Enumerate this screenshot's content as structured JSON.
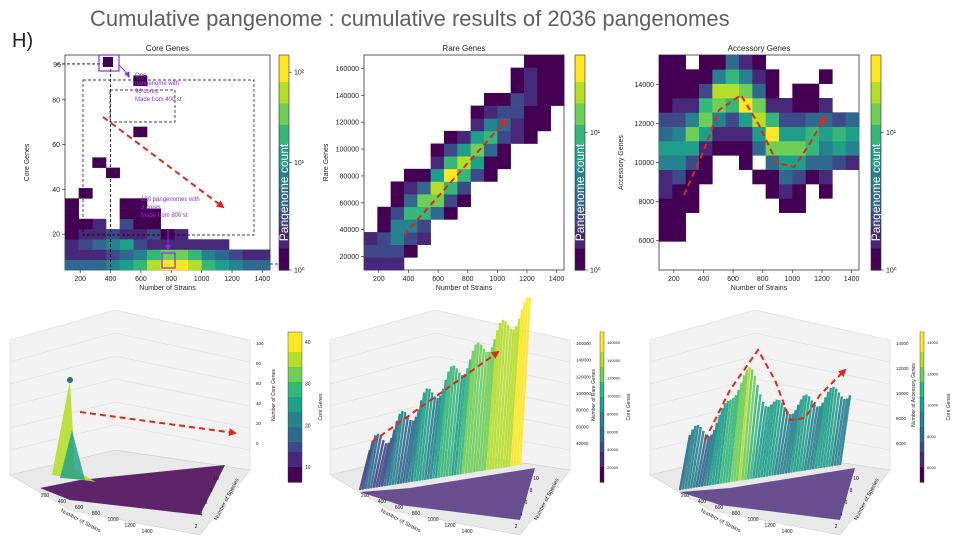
{
  "page": {
    "title": "Cumulative pangenome : cumulative results of 2036 pangenomes",
    "panel_letter": "H)"
  },
  "colors": {
    "viridis": [
      "#440154",
      "#482878",
      "#3e4989",
      "#31688e",
      "#26828e",
      "#1f9e89",
      "#35b779",
      "#6ece58",
      "#b5de2b",
      "#fde725"
    ],
    "arrow": "#e3261b",
    "annotation": "#8a2be2",
    "frame": "#333333"
  },
  "chart_data": [
    {
      "type": "heatmap",
      "title": "Core Genes",
      "xlabel": "Number of Strains",
      "ylabel": "Core Genes",
      "xlim": [
        100,
        1450
      ],
      "ylim": [
        4,
        100
      ],
      "xticks": [
        200,
        400,
        600,
        800,
        1000,
        1200,
        1400
      ],
      "yticks": [
        20,
        40,
        60,
        80
      ],
      "extra_ytick": "96",
      "colorbar": {
        "label": "Pangenome count",
        "scale": "log",
        "ticks": [
          "10⁰",
          "10¹",
          "10²"
        ]
      },
      "annotations": [
        "One\npangenome with\n96 cores\nMade from 400 st",
        "100 pangenomes with\n3 cores\nMade from 800 st"
      ]
    },
    {
      "type": "heatmap",
      "title": "Rare Genes",
      "xlabel": "Number of Strains",
      "ylabel": "Rare Genes",
      "xlim": [
        100,
        1450
      ],
      "ylim": [
        10000,
        170000
      ],
      "xticks": [
        200,
        400,
        600,
        800,
        1000,
        1200,
        1400
      ],
      "yticks": [
        20000,
        40000,
        60000,
        80000,
        100000,
        120000,
        140000,
        160000
      ],
      "colorbar": {
        "label": "Pangenome count",
        "scale": "log",
        "ticks": [
          "10⁰",
          "10¹"
        ]
      }
    },
    {
      "type": "heatmap",
      "title": "Accessory Genes",
      "xlabel": "Number of Strains",
      "ylabel": "Accessory Genes",
      "xlim": [
        100,
        1450
      ],
      "ylim": [
        4500,
        15500
      ],
      "xticks": [
        200,
        400,
        600,
        800,
        1000,
        1200,
        1400
      ],
      "yticks": [
        6000,
        8000,
        10000,
        12000,
        14000
      ],
      "colorbar": {
        "label": "Pangenome count",
        "scale": "log",
        "ticks": [
          "10⁰",
          "10¹"
        ]
      }
    },
    {
      "type": "surface",
      "xlabel": "Number of Strains",
      "ylabel": "Number of Species",
      "zlabel": "Number of Core Genes",
      "xticks": [
        "200",
        "400",
        "600",
        "800",
        "1000",
        "1200",
        "1400"
      ],
      "yticks": [
        "2",
        "4",
        "6",
        "8",
        "10"
      ],
      "zticks": [
        "0",
        "20",
        "40",
        "60",
        "80",
        "100"
      ],
      "colorbar": {
        "label": "Core Genes",
        "ticks": [
          "10",
          "20",
          "30",
          "40"
        ]
      }
    },
    {
      "type": "surface",
      "xlabel": "Number of Strains",
      "ylabel": "Number of Species",
      "zlabel": "Number of Rare Genes",
      "xticks": [
        "200",
        "400",
        "600",
        "800",
        "1000",
        "1200",
        "1400"
      ],
      "yticks": [
        "2",
        "4",
        "6",
        "8",
        "10"
      ],
      "zticks": [
        "40000",
        "60000",
        "80000",
        "100000",
        "120000",
        "140000",
        "160000"
      ],
      "colorbar": {
        "label": "Core Genes",
        "ticks": [
          "20000",
          "40000",
          "60000",
          "80000",
          "100000",
          "120000",
          "140000",
          "160000"
        ]
      }
    },
    {
      "type": "surface",
      "xlabel": "Number of Strains",
      "ylabel": "Number of Species",
      "zlabel": "Number of Accessory Genes",
      "xticks": [
        "200",
        "400",
        "600",
        "800",
        "1000",
        "1200",
        "1400"
      ],
      "yticks": [
        "2",
        "4",
        "6",
        "8",
        "10"
      ],
      "zticks": [
        "6000",
        "8000",
        "10000",
        "12000",
        "14000"
      ],
      "colorbar": {
        "label": "Core Genes",
        "ticks": [
          "6000",
          "8000",
          "10000",
          "12000",
          "14000"
        ]
      }
    }
  ]
}
